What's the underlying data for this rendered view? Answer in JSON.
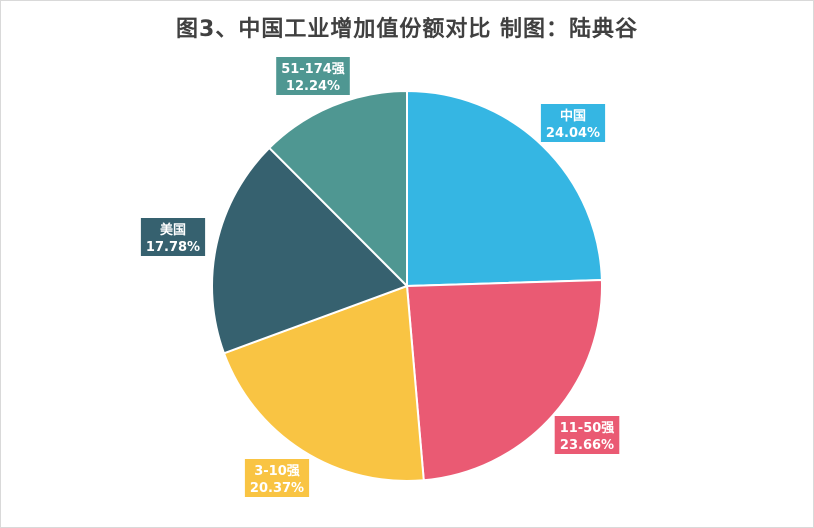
{
  "chart_data": {
    "type": "pie",
    "title": "图3、中国工业增加值份额对比    制图：陆典谷",
    "categories": [
      "中国",
      "11-50强",
      "3-10强",
      "美国",
      "51-174强"
    ],
    "values": [
      24.04,
      23.66,
      20.37,
      17.78,
      12.24
    ],
    "value_labels": [
      "24.04%",
      "23.66%",
      "20.37%",
      "17.78%",
      "12.24%"
    ],
    "colors": [
      "#35b6e3",
      "#ea5a73",
      "#f9c443",
      "#36616f",
      "#4f9792"
    ],
    "start": "12 o'clock",
    "direction": "clockwise",
    "legend": "none"
  }
}
